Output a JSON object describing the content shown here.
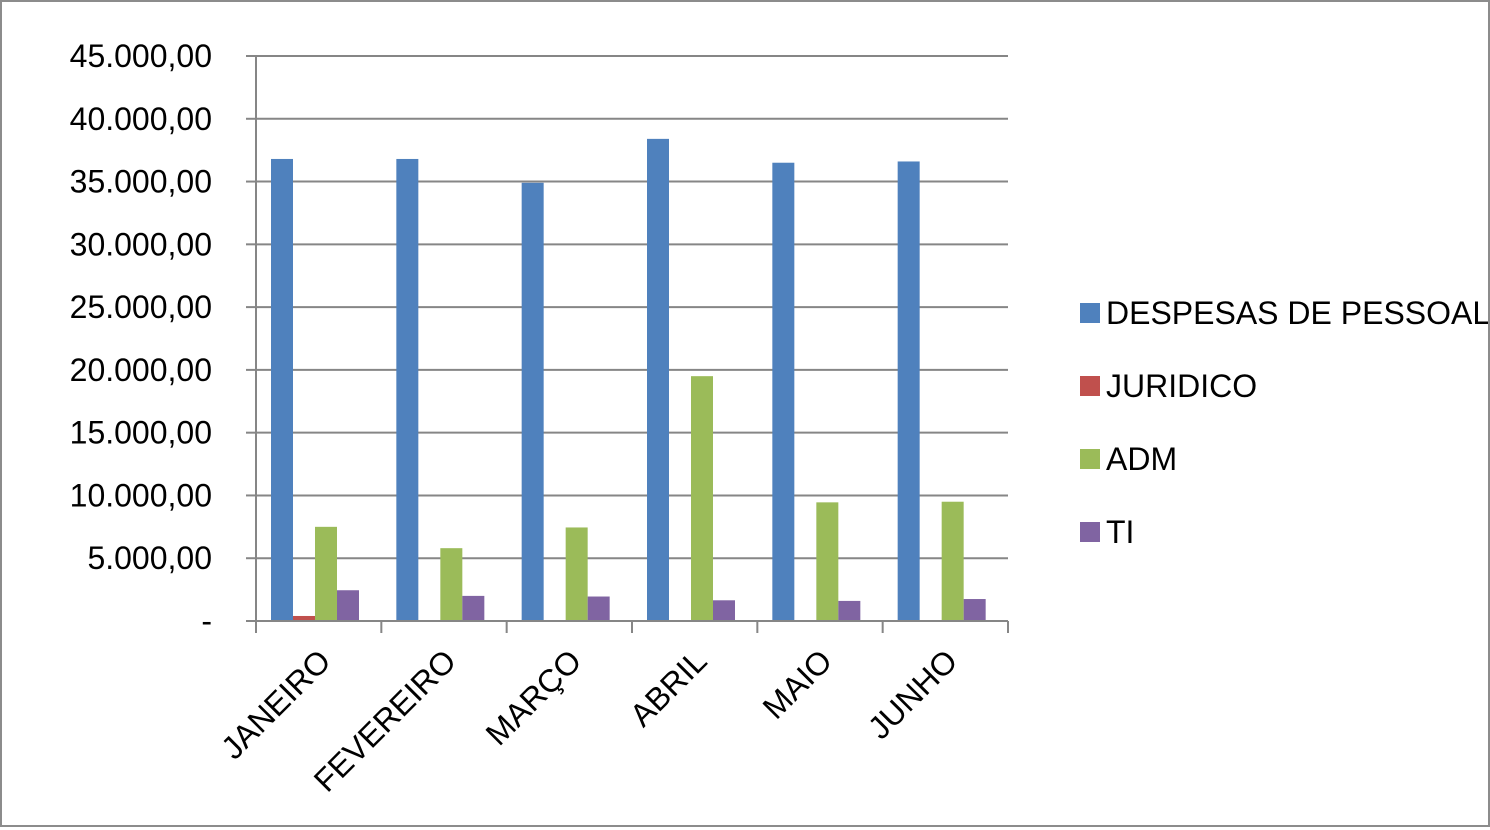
{
  "chart_data": {
    "type": "bar",
    "title": "",
    "xlabel": "",
    "ylabel": "",
    "ylim": [
      0,
      45000
    ],
    "y_ticks": [
      {
        "value": 0,
        "label": "-"
      },
      {
        "value": 5000,
        "label": "5.000,00"
      },
      {
        "value": 10000,
        "label": "10.000,00"
      },
      {
        "value": 15000,
        "label": "15.000,00"
      },
      {
        "value": 20000,
        "label": "20.000,00"
      },
      {
        "value": 25000,
        "label": "25.000,00"
      },
      {
        "value": 30000,
        "label": "30.000,00"
      },
      {
        "value": 35000,
        "label": "35.000,00"
      },
      {
        "value": 40000,
        "label": "40.000,00"
      },
      {
        "value": 45000,
        "label": "45.000,00"
      }
    ],
    "grid": true,
    "legend_position": "right",
    "categories": [
      "JANEIRO",
      "FEVEREIRO",
      "MARÇO",
      "ABRIL",
      "MAIO",
      "JUNHO"
    ],
    "series": [
      {
        "name": "DESPESAS DE PESSOAL",
        "color": "#4f81bd",
        "values": [
          36800,
          36800,
          34900,
          38400,
          36500,
          36600
        ]
      },
      {
        "name": "JURIDICO",
        "color": "#c0504d",
        "values": [
          400,
          0,
          0,
          0,
          0,
          0
        ]
      },
      {
        "name": "ADM",
        "color": "#9bbb59",
        "values": [
          7500,
          5800,
          7450,
          19500,
          9450,
          9500
        ]
      },
      {
        "name": "TI",
        "color": "#8064a2",
        "values": [
          2450,
          2000,
          1950,
          1650,
          1600,
          1750
        ]
      }
    ]
  }
}
